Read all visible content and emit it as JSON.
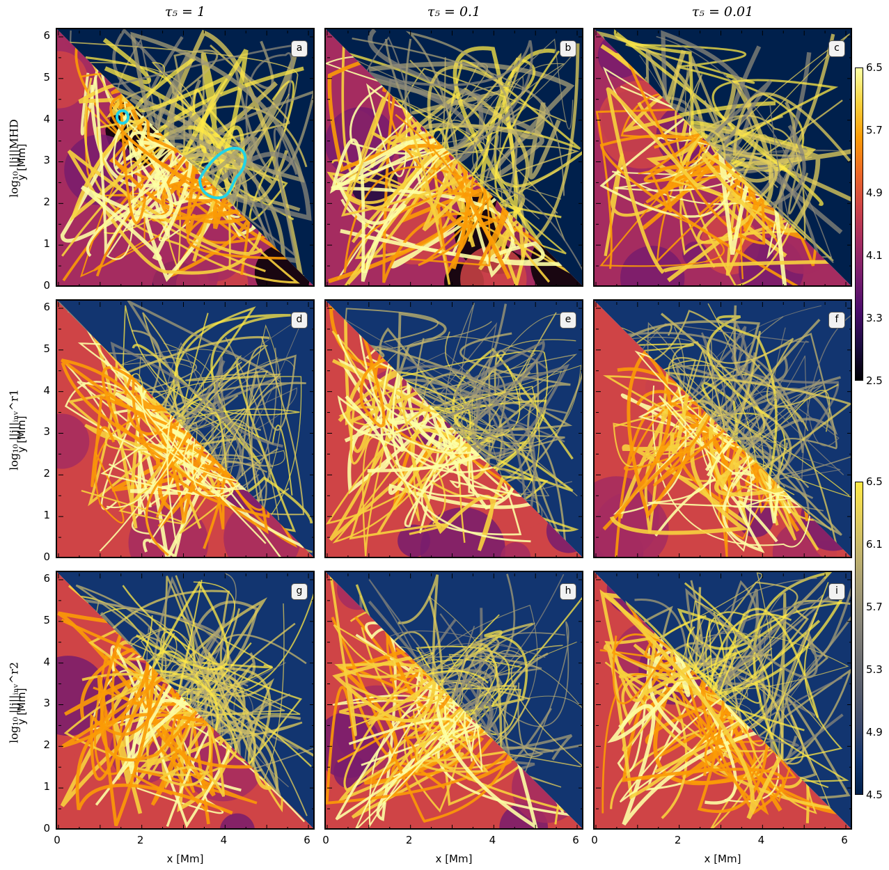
{
  "chart_data": {
    "type": "heatmap",
    "column_titles": [
      "τ₅ = 1",
      "τ₅ = 0.1",
      "τ₅ = 0.01"
    ],
    "row_labels": [
      "log₁₀ ||j||MHD",
      "log₁₀ ||j||ᵢₙᵥ^r1",
      "log₁₀ ||j||ᵢₙᵥ^r2"
    ],
    "ylabel": "y [Mm]",
    "xlabel": "x [Mm]",
    "xlim": [
      0,
      6.15
    ],
    "ylim": [
      0,
      6.15
    ],
    "x_ticks": [
      "0",
      "2",
      "4",
      "6"
    ],
    "y_ticks": [
      "0",
      "1",
      "2",
      "3",
      "4",
      "5",
      "6"
    ],
    "panel_letters": [
      "a",
      "b",
      "c",
      "d",
      "e",
      "f",
      "g",
      "h",
      "i"
    ],
    "colorbars": [
      {
        "ticks": [
          "6.5",
          "5.7",
          "4.9",
          "4.1",
          "3.3",
          "2.5"
        ],
        "range": [
          2.5,
          6.5
        ],
        "colormap": "inferno"
      },
      {
        "ticks": [
          "6.5",
          "6.1",
          "5.7",
          "5.3",
          "4.9",
          "4.5"
        ],
        "range": [
          4.5,
          6.5
        ],
        "colormap": "cividis"
      }
    ],
    "split": "diagonal from top-left to bottom-right; lower-left triangle uses inferno-like map, upper-right triangle uses cividis-like map"
  },
  "colors": {
    "inferno": [
      "#000004",
      "#1b0c41",
      "#4a0c6b",
      "#781c6d",
      "#a52c60",
      "#cf4446",
      "#ed6925",
      "#fb9b06",
      "#f7d13d",
      "#fcffa4"
    ],
    "cividis": [
      "#00204c",
      "#123570",
      "#3b496c",
      "#575d6d",
      "#707173",
      "#8a8779",
      "#a69d75",
      "#c4b56c",
      "#e4cf5b",
      "#ffe945"
    ],
    "contour": "#22d3e6"
  }
}
